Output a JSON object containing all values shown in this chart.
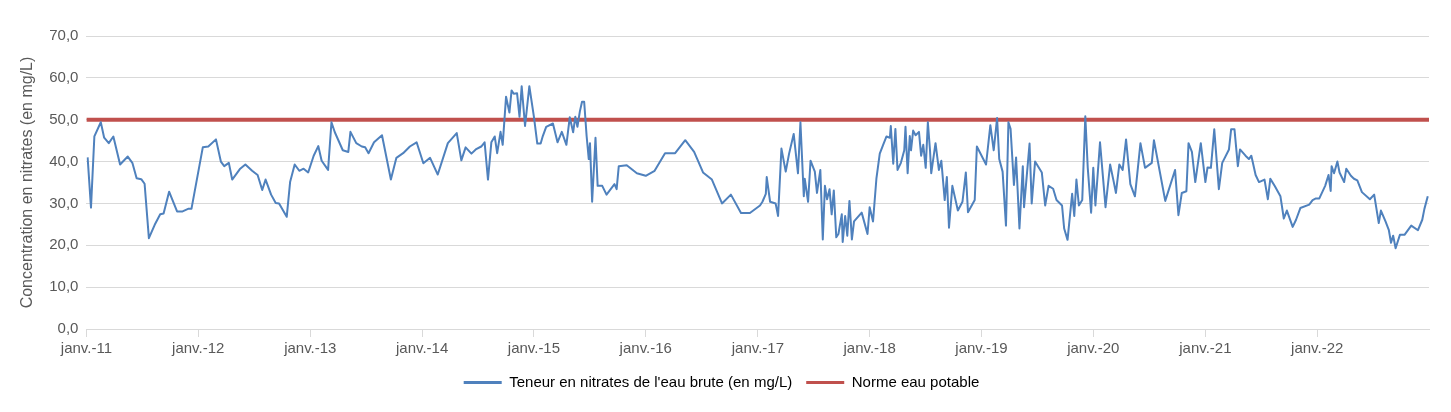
{
  "chart_data": {
    "type": "line",
    "ylabel": "Concentration en nitrates (en mg/L)",
    "xlim": [
      "2011-01-01",
      "2023-01-01"
    ],
    "xticks": [
      {
        "value": "2011-01-01",
        "label": "janv.-11"
      },
      {
        "value": "2012-01-01",
        "label": "janv.-12"
      },
      {
        "value": "2013-01-01",
        "label": "janv.-13"
      },
      {
        "value": "2014-01-01",
        "label": "janv.-14"
      },
      {
        "value": "2015-01-01",
        "label": "janv.-15"
      },
      {
        "value": "2016-01-01",
        "label": "janv.-16"
      },
      {
        "value": "2017-01-01",
        "label": "janv.-17"
      },
      {
        "value": "2018-01-01",
        "label": "janv.-18"
      },
      {
        "value": "2019-01-01",
        "label": "janv.-19"
      },
      {
        "value": "2020-01-01",
        "label": "janv.-20"
      },
      {
        "value": "2021-01-01",
        "label": "janv.-21"
      },
      {
        "value": "2022-01-01",
        "label": "janv.-22"
      }
    ],
    "ylim": [
      0,
      70
    ],
    "yticks": [
      {
        "value": 0,
        "label": "0,0"
      },
      {
        "value": 10,
        "label": "10,0"
      },
      {
        "value": 20,
        "label": "20,0"
      },
      {
        "value": 30,
        "label": "30,0"
      },
      {
        "value": 40,
        "label": "40,0"
      },
      {
        "value": 50,
        "label": "50,0"
      },
      {
        "value": 60,
        "label": "60,0"
      },
      {
        "value": 70,
        "label": "70,0"
      }
    ],
    "grid": "y",
    "legend": "bottom",
    "marker": "none",
    "line_style": "solid",
    "ref_lines": [
      {
        "axis": "y",
        "value": 50,
        "label": "Norme eau potable",
        "color": "#c0504d"
      }
    ],
    "series": [
      {
        "name": "Teneur en nitrates de l'eau brute (en mg/L)",
        "color": "#4f81bd",
        "x": [
          "2011-01-05",
          "2011-01-16",
          "2011-01-27",
          "2011-02-17",
          "2011-02-28",
          "2011-03-15",
          "2011-03-30",
          "2011-04-21",
          "2011-05-16",
          "2011-05-31",
          "2011-06-14",
          "2011-06-29",
          "2011-07-10",
          "2011-07-24",
          "2011-08-12",
          "2011-08-30",
          "2011-09-10",
          "2011-09-28",
          "2011-10-24",
          "2011-11-11",
          "2011-11-29",
          "2011-12-10",
          "2012-01-16",
          "2012-02-03",
          "2012-02-28",
          "2012-03-15",
          "2012-03-26",
          "2012-04-10",
          "2012-04-21",
          "2012-05-16",
          "2012-06-03",
          "2012-06-25",
          "2012-07-13",
          "2012-07-28",
          "2012-08-08",
          "2012-08-26",
          "2012-09-10",
          "2012-09-21",
          "2012-10-16",
          "2012-10-27",
          "2012-11-11",
          "2012-11-26",
          "2012-12-10",
          "2012-12-25",
          "2013-01-12",
          "2013-01-27",
          "2013-02-07",
          "2013-02-28",
          "2013-03-11",
          "2013-03-22",
          "2013-04-17",
          "2013-05-05",
          "2013-05-12",
          "2013-05-31",
          "2013-06-18",
          "2013-06-29",
          "2013-07-10",
          "2013-07-28",
          "2013-08-23",
          "2013-09-21",
          "2013-10-09",
          "2013-10-31",
          "2013-11-22",
          "2013-12-14",
          "2014-01-05",
          "2014-01-27",
          "2014-02-21",
          "2014-03-26",
          "2014-04-24",
          "2014-05-09",
          "2014-05-23",
          "2014-06-11",
          "2014-06-25",
          "2014-07-13",
          "2014-07-24",
          "2014-08-04",
          "2014-08-15",
          "2014-08-26",
          "2014-09-03",
          "2014-09-14",
          "2014-09-21",
          "2014-10-02",
          "2014-10-13",
          "2014-10-20",
          "2014-10-27",
          "2014-11-07",
          "2014-11-15",
          "2014-11-22",
          "2014-12-03",
          "2014-12-17",
          "2015-01-01",
          "2015-01-12",
          "2015-01-23",
          "2015-01-30",
          "2015-02-10",
          "2015-03-04",
          "2015-03-19",
          "2015-04-02",
          "2015-04-17",
          "2015-04-28",
          "2015-05-09",
          "2015-05-16",
          "2015-05-23",
          "2015-05-31",
          "2015-06-07",
          "2015-06-14",
          "2015-06-22",
          "2015-06-29",
          "2015-07-03",
          "2015-07-10",
          "2015-07-21",
          "2015-07-28",
          "2015-08-12",
          "2015-08-26",
          "2015-09-21",
          "2015-09-28",
          "2015-10-05",
          "2015-10-31",
          "2015-12-03",
          "2016-01-01",
          "2016-01-30",
          "2016-03-04",
          "2016-04-06",
          "2016-05-09",
          "2016-06-07",
          "2016-07-06",
          "2016-08-04",
          "2016-09-06",
          "2016-10-05",
          "2016-11-07",
          "2016-12-06",
          "2017-01-08",
          "2017-01-16",
          "2017-01-27",
          "2017-01-30",
          "2017-02-10",
          "2017-02-28",
          "2017-03-08",
          "2017-03-19",
          "2017-04-02",
          "2017-04-13",
          "2017-04-28",
          "2017-05-12",
          "2017-05-20",
          "2017-05-31",
          "2017-06-03",
          "2017-06-14",
          "2017-06-22",
          "2017-07-06",
          "2017-07-13",
          "2017-07-24",
          "2017-08-01",
          "2017-08-08",
          "2017-08-15",
          "2017-08-23",
          "2017-08-30",
          "2017-09-06",
          "2017-09-14",
          "2017-09-21",
          "2017-10-02",
          "2017-10-05",
          "2017-10-13",
          "2017-10-20",
          "2017-10-27",
          "2017-11-04",
          "2017-11-11",
          "2017-12-06",
          "2017-12-25",
          "2018-01-01",
          "2018-01-12",
          "2018-01-23",
          "2018-02-03",
          "2018-02-14",
          "2018-02-25",
          "2018-03-08",
          "2018-03-11",
          "2018-03-19",
          "2018-03-26",
          "2018-04-02",
          "2018-04-13",
          "2018-04-24",
          "2018-04-28",
          "2018-05-05",
          "2018-05-12",
          "2018-05-16",
          "2018-05-23",
          "2018-05-31",
          "2018-06-11",
          "2018-06-18",
          "2018-06-25",
          "2018-07-03",
          "2018-07-10",
          "2018-07-17",
          "2018-07-21",
          "2018-08-04",
          "2018-08-15",
          "2018-08-23",
          "2018-09-03",
          "2018-09-10",
          "2018-09-17",
          "2018-09-28",
          "2018-10-16",
          "2018-10-31",
          "2018-11-11",
          "2018-11-18",
          "2018-12-10",
          "2018-12-17",
          "2019-01-16",
          "2019-01-30",
          "2019-02-10",
          "2019-02-21",
          "2019-02-28",
          "2019-03-11",
          "2019-03-22",
          "2019-03-30",
          "2019-04-06",
          "2019-04-17",
          "2019-04-24",
          "2019-05-05",
          "2019-05-16",
          "2019-05-20",
          "2019-06-07",
          "2019-06-14",
          "2019-06-25",
          "2019-07-17",
          "2019-07-28",
          "2019-08-08",
          "2019-08-23",
          "2019-09-03",
          "2019-09-21",
          "2019-09-28",
          "2019-10-09",
          "2019-10-24",
          "2019-10-31",
          "2019-11-07",
          "2019-11-15",
          "2019-11-26",
          "2019-12-06",
          "2019-12-14",
          "2019-12-25",
          "2020-01-01",
          "2020-01-08",
          "2020-01-23",
          "2020-02-10",
          "2020-02-25",
          "2020-03-08",
          "2020-03-15",
          "2020-03-26",
          "2020-04-06",
          "2020-04-17",
          "2020-05-01",
          "2020-05-16",
          "2020-06-03",
          "2020-06-18",
          "2020-07-10",
          "2020-07-17",
          "2020-08-23",
          "2020-09-24",
          "2020-10-05",
          "2020-10-16",
          "2020-10-31",
          "2020-11-07",
          "2020-11-18",
          "2020-11-29",
          "2020-12-17",
          "2021-01-01",
          "2021-01-08",
          "2021-01-19",
          "2021-01-30",
          "2021-02-14",
          "2021-02-25",
          "2021-03-19",
          "2021-03-26",
          "2021-04-06",
          "2021-04-17",
          "2021-04-24",
          "2021-05-12",
          "2021-05-23",
          "2021-05-31",
          "2021-06-14",
          "2021-06-25",
          "2021-07-13",
          "2021-07-24",
          "2021-08-01",
          "2021-08-15",
          "2021-09-03",
          "2021-09-14",
          "2021-09-24",
          "2021-10-13",
          "2021-10-24",
          "2021-11-07",
          "2021-12-06",
          "2021-12-17",
          "2021-12-28",
          "2022-01-08",
          "2022-01-27",
          "2022-02-07",
          "2022-02-14",
          "2022-02-17",
          "2022-02-25",
          "2022-03-08",
          "2022-03-15",
          "2022-03-30",
          "2022-04-06",
          "2022-04-21",
          "2022-05-01",
          "2022-05-12",
          "2022-05-27",
          "2022-06-22",
          "2022-07-06",
          "2022-07-21",
          "2022-07-28",
          "2022-08-12",
          "2022-08-23",
          "2022-08-30",
          "2022-09-06",
          "2022-09-14",
          "2022-09-28",
          "2022-10-13",
          "2022-11-04",
          "2022-11-26",
          "2022-12-10",
          "2022-12-17",
          "2022-12-28"
        ],
        "values": [
          41,
          29,
          46,
          49.4,
          45.7,
          44.4,
          46,
          39.3,
          41.2,
          39.7,
          36,
          35.8,
          34.7,
          21.7,
          24.9,
          27.4,
          27.6,
          32.8,
          28.1,
          28.1,
          28.7,
          28.7,
          43.4,
          43.6,
          45.3,
          40,
          38.9,
          39.7,
          35.7,
          38.2,
          39.3,
          37.8,
          36.8,
          33.2,
          35.7,
          32.1,
          30.1,
          30,
          26.8,
          35.1,
          39.3,
          37.8,
          38.3,
          37.4,
          41.4,
          43.7,
          40.2,
          38,
          49.4,
          47,
          42.7,
          42.3,
          47.1,
          44.4,
          43.6,
          43.4,
          42,
          44.6,
          46.3,
          35.7,
          40.9,
          42,
          43.6,
          44.6,
          39.6,
          40.9,
          36.9,
          44.4,
          46.8,
          40.3,
          43.4,
          41.9,
          42.9,
          43.6,
          44.6,
          35.7,
          44.6,
          46,
          42,
          47.1,
          44,
          55.5,
          51.7,
          57,
          56.2,
          56.3,
          50.7,
          58,
          48.5,
          58,
          50.7,
          44.3,
          44.3,
          46.1,
          48.3,
          49.1,
          44.6,
          47.1,
          44,
          50.6,
          47,
          50.7,
          48.3,
          52,
          54.3,
          54.3,
          46.1,
          40.6,
          44.4,
          30.4,
          45.7,
          34.2,
          34.2,
          32.1,
          34.6,
          33.4,
          38.9,
          39.1,
          37.2,
          36.6,
          37.8,
          42,
          42,
          45.1,
          42.3,
          37.4,
          35.7,
          30,
          32.1,
          27.7,
          27.7,
          29.5,
          30.4,
          32.3,
          36.3,
          30.4,
          30,
          27,
          43.1,
          37.6,
          41.9,
          46.6,
          37.2,
          49.4,
          31.7,
          35.9,
          30.4,
          40.2,
          37.6,
          32.5,
          38,
          21.4,
          34.2,
          31,
          33.4,
          27.4,
          33.1,
          21.9,
          22.7,
          27.4,
          20.8,
          27,
          22.3,
          30.6,
          21.4,
          25.7,
          27.8,
          22.7,
          29.1,
          25.7,
          35.9,
          41.9,
          44,
          46,
          45.7,
          48.5,
          39.5,
          47.8,
          38,
          39.7,
          42.7,
          48.3,
          37.2,
          46.1,
          42.7,
          47.4,
          46.3,
          47.1,
          41.4,
          44,
          38.5,
          49.4,
          42.7,
          37.2,
          44.4,
          38,
          40.2,
          30.8,
          36.3,
          24.2,
          34.2,
          28.3,
          30.4,
          37.4,
          27.9,
          30.8,
          43.6,
          39.3,
          48.7,
          42.7,
          50.4,
          40.6,
          37.6,
          24.7,
          49.4,
          47.8,
          34.4,
          41,
          24,
          38.9,
          29.1,
          44.3,
          30,
          40,
          37.4,
          29.5,
          34.2,
          33.5,
          30.8,
          29.5,
          24,
          21.3,
          32.3,
          27,
          35.7,
          29.5,
          30.8,
          50.8,
          38.5,
          27.8,
          38.5,
          29.5,
          44.6,
          29.1,
          39.3,
          35.1,
          32.5,
          39.3,
          38,
          45.3,
          34.6,
          31.7,
          44.4,
          38.5,
          39.7,
          45.1,
          30.6,
          38,
          27.2,
          32.5,
          32.9,
          44.4,
          42.3,
          35.1,
          44.4,
          35.1,
          38.6,
          38.5,
          47.7,
          33.4,
          39.7,
          42.9,
          47.7,
          47.7,
          38.9,
          42.9,
          41.4,
          40.6,
          41.4,
          36.8,
          35.1,
          35.7,
          31,
          35.9,
          34.2,
          31.7,
          26.4,
          28.3,
          24.4,
          26.1,
          28.9,
          29.7,
          30.8,
          31.2,
          31.2,
          34.2,
          36.8,
          33,
          38.9,
          37.2,
          40,
          37.4,
          35.1,
          38.3,
          36.6,
          35.9,
          35.5,
          32.7,
          31,
          32.1,
          25.3,
          28.3,
          25.7,
          23.6,
          20.6,
          22.3,
          19.3,
          22.5,
          22.5,
          24.7,
          23.6,
          26.1,
          28.7,
          31.7
        ]
      }
    ]
  }
}
